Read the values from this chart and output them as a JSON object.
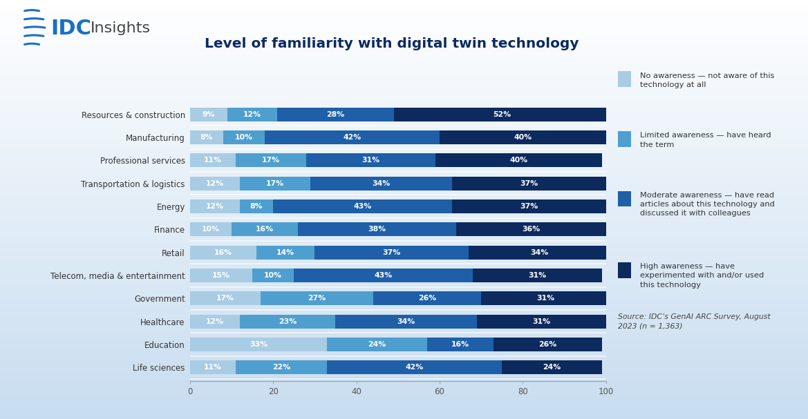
{
  "title": "Level of familiarity with digital twin technology",
  "categories": [
    "Resources & construction",
    "Manufacturing",
    "Professional services",
    "Transportation & logistics",
    "Energy",
    "Finance",
    "Retail",
    "Telecom, media & entertainment",
    "Government",
    "Healthcare",
    "Education",
    "Life sciences"
  ],
  "series": {
    "no_awareness": [
      9,
      8,
      11,
      12,
      12,
      10,
      16,
      15,
      17,
      12,
      33,
      11
    ],
    "limited_awareness": [
      12,
      10,
      17,
      17,
      8,
      16,
      14,
      10,
      27,
      23,
      24,
      22
    ],
    "moderate_awareness": [
      28,
      42,
      31,
      34,
      43,
      38,
      37,
      43,
      26,
      34,
      16,
      42
    ],
    "high_awareness": [
      52,
      40,
      40,
      37,
      37,
      36,
      34,
      31,
      31,
      31,
      26,
      24
    ]
  },
  "colors": {
    "no_awareness": "#a8cce4",
    "limited_awareness": "#4e9fcf",
    "moderate_awareness": "#1e5fa8",
    "high_awareness": "#0d2a5e"
  },
  "legend_labels": {
    "no_awareness": "No awareness — not aware of this\ntechnology at all",
    "limited_awareness": "Limited awareness — have heard\nthe term",
    "moderate_awareness": "Moderate awareness — have read\narticles about this technology and\ndiscussed it with colleagues",
    "high_awareness": "High awareness — have\nexperimented with and/or used\nthis technology"
  },
  "source_text": "Source: IDC’s GenAI ARC Survey, August\n2023 (n = 1,363)",
  "bg_top_color": "#ffffff",
  "bg_bottom_color": "#c8ddf0",
  "bar_height": 0.6,
  "xlim": [
    0,
    100
  ],
  "xlabel_ticks": [
    0,
    20,
    40,
    60,
    80,
    100
  ],
  "idc_color": "#1a6fc4",
  "insights_color": "#444444",
  "title_color": "#0d2a5e",
  "label_color": "#ffffff",
  "tick_label_color": "#555555",
  "category_color": "#333333"
}
